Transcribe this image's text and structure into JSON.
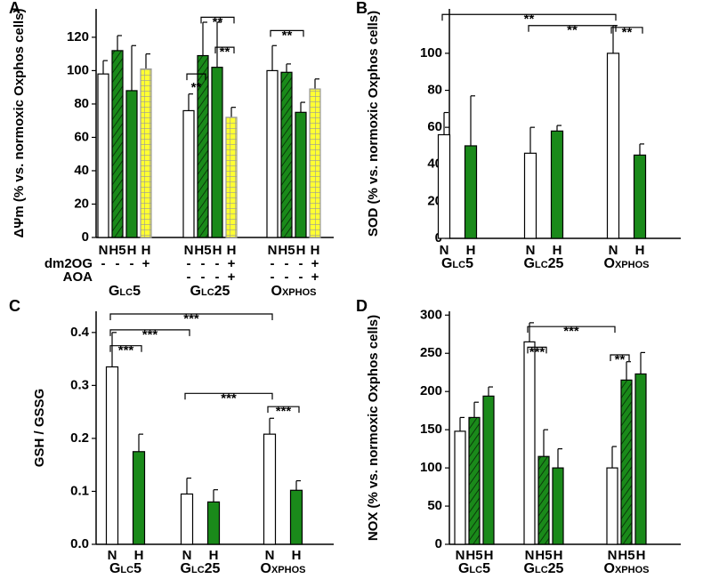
{
  "chart_data": [
    {
      "type": "bar",
      "panel": "A",
      "ylabel": "ΔΨm (% vs. normoxic Oxphos cells)",
      "ylim": [
        0,
        137
      ],
      "yticks": [
        0,
        20,
        40,
        60,
        80,
        100,
        120
      ],
      "groups": [
        "Glc5",
        "Glc25",
        "Oxphos"
      ],
      "categories": [
        "N",
        "H5",
        "H",
        "H",
        "N",
        "H5",
        "H",
        "H",
        "N",
        "H5",
        "H",
        "H"
      ],
      "values": [
        98,
        112,
        88,
        101,
        76,
        109,
        102,
        72,
        100,
        99,
        75,
        89
      ],
      "errors": [
        8,
        9,
        27,
        9,
        10,
        20,
        27,
        6,
        15,
        5,
        6,
        6
      ],
      "fills": [
        "white",
        "hatch",
        "green",
        "grid",
        "white",
        "hatch",
        "green",
        "grid",
        "white",
        "hatch",
        "green",
        "grid"
      ],
      "rows": [
        {
          "label": "dm2OG",
          "marks": [
            "-",
            "-",
            "-",
            "+",
            "-",
            "-",
            "-",
            "+",
            "-",
            "-",
            "-",
            "+"
          ]
        },
        {
          "label": "AOA",
          "marks": [
            null,
            null,
            null,
            null,
            "-",
            "-",
            "-",
            "+",
            "-",
            "-",
            "-",
            "+"
          ]
        }
      ],
      "annotations": [
        "**",
        "**",
        "**",
        "**"
      ]
    },
    {
      "type": "bar",
      "panel": "B",
      "ylabel": "SOD (% vs. normoxic Oxphos cells)",
      "ylim": [
        0,
        124
      ],
      "yticks": [
        0,
        20,
        40,
        60,
        80,
        100
      ],
      "groups": [
        "Glc5",
        "Glc25",
        "Oxphos"
      ],
      "categories": [
        "N",
        "H",
        "N",
        "H",
        "N",
        "H"
      ],
      "values": [
        56,
        50,
        46,
        58,
        100,
        45
      ],
      "errors": [
        12,
        27,
        14,
        3,
        15,
        6
      ],
      "fills": [
        "white",
        "green",
        "white",
        "green",
        "white",
        "green"
      ],
      "annotations": [
        "**",
        "**",
        "**"
      ]
    },
    {
      "type": "bar",
      "panel": "C",
      "ylabel": "GSH / GSSG",
      "ylim": [
        0,
        0.44
      ],
      "yticks": [
        {
          "value": 0,
          "label": "0.0"
        },
        0.1,
        0.2,
        0.3,
        0.4
      ],
      "groups": [
        "Glc5",
        "Glc25",
        "Oxphos"
      ],
      "categories": [
        "N",
        "H",
        "N",
        "H",
        "N",
        "H"
      ],
      "values": [
        0.335,
        0.175,
        0.095,
        0.08,
        0.208,
        0.102
      ],
      "errors": [
        0.065,
        0.033,
        0.03,
        0.023,
        0.03,
        0.018
      ],
      "fills": [
        "white",
        "green",
        "white",
        "green",
        "white",
        "green"
      ],
      "annotations": [
        "***",
        "***",
        "***",
        "***",
        "***"
      ]
    },
    {
      "type": "bar",
      "panel": "D",
      "ylabel": "NOX (% vs. normoxic Oxphos cells)",
      "ylim": [
        0,
        305
      ],
      "yticks": [
        0,
        50,
        100,
        150,
        200,
        250,
        300
      ],
      "groups": [
        "Glc5",
        "Glc25",
        "Oxphos"
      ],
      "categories": [
        "N",
        "H5",
        "H",
        "N",
        "H5",
        "H",
        "N",
        "H5",
        "H"
      ],
      "values": [
        148,
        166,
        194,
        265,
        115,
        100,
        100,
        215,
        223
      ],
      "errors": [
        18,
        20,
        12,
        25,
        35,
        25,
        28,
        24,
        28
      ],
      "fills": [
        "white",
        "hatch",
        "green",
        "white",
        "hatch",
        "green",
        "white",
        "hatch",
        "green"
      ],
      "annotations": [
        "***",
        "***",
        "**"
      ]
    }
  ]
}
